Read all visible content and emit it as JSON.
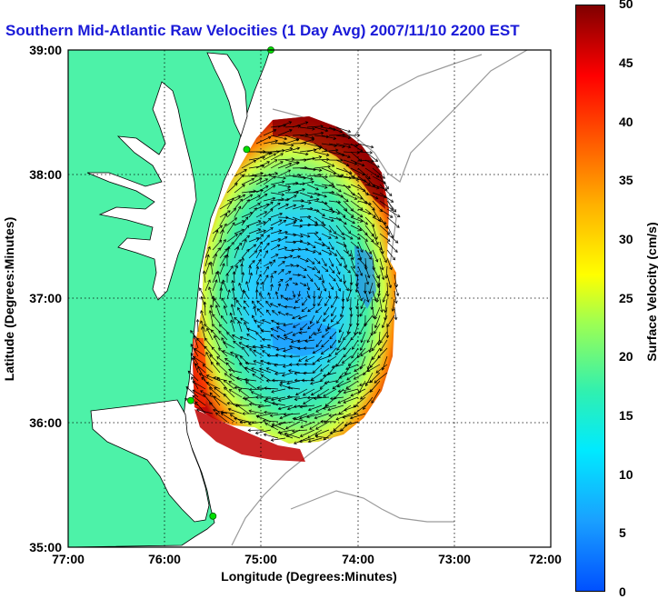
{
  "title": "Southern Mid-Atlantic Raw Velocities (1 Day Avg) 2007/11/10 2200 EST",
  "x_axis": {
    "label": "Longitude (Degrees:Minutes)",
    "ticks": [
      "77:00",
      "76:00",
      "75:00",
      "74:00",
      "73:00",
      "72:00"
    ]
  },
  "y_axis": {
    "label": "Latitude (Degrees:Minutes)",
    "ticks": [
      "39:00",
      "38:00",
      "37:00",
      "36:00",
      "35:00"
    ]
  },
  "colorbar": {
    "label": "Surface Velocity (cm/s)",
    "ticks": [
      "50",
      "45",
      "40",
      "35",
      "30",
      "25",
      "20",
      "15",
      "10",
      "5",
      "0"
    ],
    "min": 0,
    "max": 50
  },
  "colors": {
    "land": "#4df2a8",
    "title": "#1a1ad8",
    "station": "#00e000"
  },
  "stations": [
    {
      "lon": -74.9,
      "lat": 39.0
    },
    {
      "lon": -75.15,
      "lat": 38.2
    },
    {
      "lon": -75.73,
      "lat": 36.18
    },
    {
      "lon": -75.5,
      "lat": 35.25
    }
  ]
}
